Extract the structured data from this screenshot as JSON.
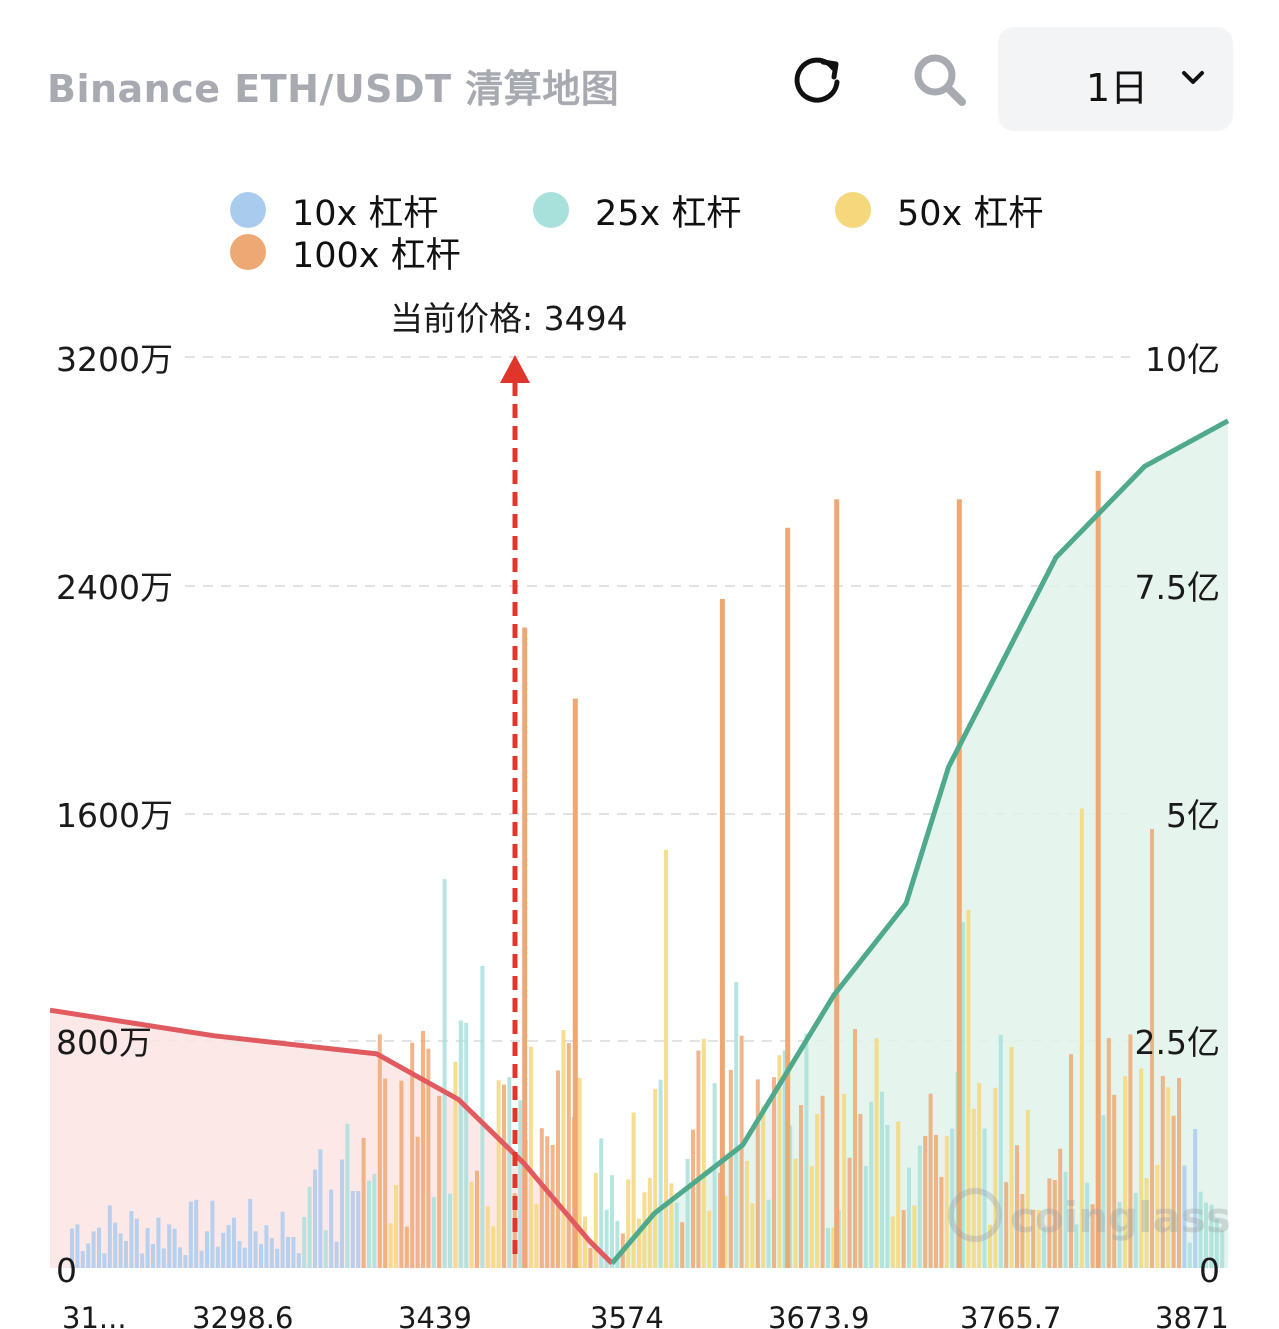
{
  "header": {
    "title": "Binance ETH/USDT 清算地图",
    "range_value": "1日",
    "icons": [
      "refresh-icon",
      "search-icon",
      "chevron-down-icon"
    ]
  },
  "legend": [
    {
      "label": "10x 杠杆",
      "color": "#a9cbee"
    },
    {
      "label": "25x 杠杆",
      "color": "#a8e0dc"
    },
    {
      "label": "50x 杠杆",
      "color": "#f5d77c"
    },
    {
      "label": "100x 杠杆",
      "color": "#eea874"
    }
  ],
  "chart_data": {
    "type": "bar",
    "current_price_label": "当前价格: 3494",
    "current_price": 3494,
    "left_axis": {
      "ticks": [
        "0",
        "800万",
        "1600万",
        "2400万",
        "3200万"
      ],
      "values": [
        0,
        8000000,
        16000000,
        24000000,
        32000000
      ]
    },
    "right_axis": {
      "ticks": [
        "0",
        "2.5亿",
        "5亿",
        "7.5亿",
        "10亿"
      ],
      "values": [
        0,
        250000000,
        500000000,
        750000000,
        1000000000
      ]
    },
    "x_ticks": [
      "31...",
      "3298.6",
      "3439",
      "3574",
      "3673.9",
      "3765.7",
      "3871"
    ],
    "grid": true,
    "watermark": "coinglass",
    "colors": {
      "lev10": "#a9cbee",
      "lev25": "#a8e0dc",
      "lev50": "#f5d77c",
      "lev100": "#eea874",
      "short_line": "#e05a5f",
      "long_line": "#4fa98d",
      "price_line": "#e0352b"
    },
    "cumulative_short": {
      "name": "",
      "points": [
        [
          3150,
          283000000
        ],
        [
          3250,
          255000000
        ],
        [
          3350,
          235000000
        ],
        [
          3400,
          185000000
        ],
        [
          3440,
          115000000
        ],
        [
          3480,
          30000000
        ],
        [
          3494,
          5000000
        ]
      ]
    },
    "cumulative_long": {
      "name": "",
      "points": [
        [
          3494,
          5000000
        ],
        [
          3520,
          60000000
        ],
        [
          3574,
          135000000
        ],
        [
          3630,
          300000000
        ],
        [
          3673.9,
          400000000
        ],
        [
          3700,
          550000000
        ],
        [
          3765.7,
          780000000
        ],
        [
          3820,
          880000000
        ],
        [
          3871,
          930000000
        ]
      ]
    },
    "peak_bars": [
      {
        "price": 3439,
        "value": 22500000
      },
      {
        "price": 3470,
        "value": 20000000
      },
      {
        "price": 3560,
        "value": 23500000
      },
      {
        "price": 3600,
        "value": 26000000
      },
      {
        "price": 3630,
        "value": 27000000
      },
      {
        "price": 3705,
        "value": 27000000
      },
      {
        "price": 3790,
        "value": 28000000
      }
    ]
  }
}
